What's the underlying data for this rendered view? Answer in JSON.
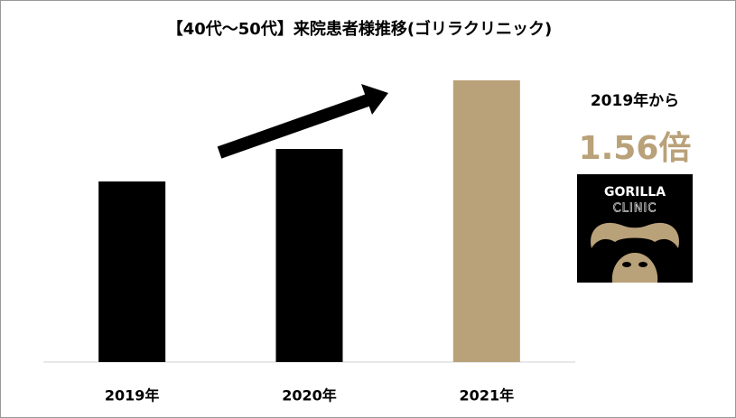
{
  "chart_data": {
    "type": "bar",
    "title": "【40代〜50代】来院患者様推移(ゴリラクリニック)",
    "categories": [
      "2019年",
      "2020年",
      "2021年"
    ],
    "values": [
      100,
      118,
      156
    ],
    "colors": [
      "#000000",
      "#000000",
      "#b9a179"
    ],
    "ylim": [
      0,
      160
    ],
    "annotation": {
      "caption": "2019年から",
      "highlight": "1.56倍",
      "highlight_color": "#b9a179"
    }
  },
  "logo": {
    "line1": "GORILLA",
    "line2": "CLINIC"
  }
}
